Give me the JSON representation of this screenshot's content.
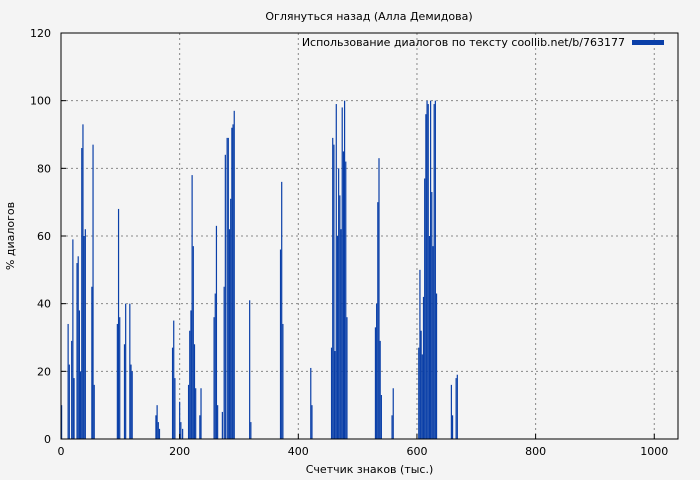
{
  "chart_data": {
    "type": "bar",
    "title": "Оглянуться назад (Алла Демидова)",
    "xlabel": "Счетчик знаков (тыс.)",
    "ylabel": "% диалогов",
    "legend": "Использование диалогов по тексту coollib.net/b/763177",
    "legend_position": "top-right",
    "xlim": [
      0,
      1040
    ],
    "ylim": [
      0,
      120
    ],
    "xticks": [
      0,
      200,
      400,
      600,
      800,
      1000
    ],
    "yticks": [
      0,
      20,
      40,
      60,
      80,
      100,
      120
    ],
    "grid": true,
    "bar_color": "#0a3fa8",
    "points": [
      [
        1,
        10
      ],
      [
        12,
        34
      ],
      [
        14,
        22
      ],
      [
        18,
        29
      ],
      [
        20,
        59
      ],
      [
        22,
        18
      ],
      [
        27,
        52
      ],
      [
        29,
        54
      ],
      [
        31,
        38
      ],
      [
        33,
        20
      ],
      [
        35,
        86
      ],
      [
        37,
        93
      ],
      [
        39,
        60
      ],
      [
        41,
        62
      ],
      [
        52,
        45
      ],
      [
        54,
        87
      ],
      [
        56,
        16
      ],
      [
        95,
        34
      ],
      [
        97,
        68
      ],
      [
        99,
        36
      ],
      [
        107,
        28
      ],
      [
        109,
        40
      ],
      [
        116,
        40
      ],
      [
        118,
        22
      ],
      [
        120,
        20
      ],
      [
        160,
        7
      ],
      [
        162,
        10
      ],
      [
        164,
        5
      ],
      [
        166,
        3
      ],
      [
        188,
        27
      ],
      [
        190,
        35
      ],
      [
        192,
        18
      ],
      [
        200,
        11
      ],
      [
        202,
        5
      ],
      [
        205,
        3
      ],
      [
        215,
        16
      ],
      [
        217,
        32
      ],
      [
        219,
        38
      ],
      [
        221,
        78
      ],
      [
        223,
        57
      ],
      [
        225,
        28
      ],
      [
        227,
        15
      ],
      [
        234,
        7
      ],
      [
        236,
        15
      ],
      [
        258,
        36
      ],
      [
        260,
        43
      ],
      [
        262,
        63
      ],
      [
        264,
        10
      ],
      [
        272,
        8
      ],
      [
        275,
        45
      ],
      [
        277,
        84
      ],
      [
        280,
        89
      ],
      [
        282,
        89
      ],
      [
        284,
        62
      ],
      [
        286,
        71
      ],
      [
        288,
        92
      ],
      [
        290,
        93
      ],
      [
        292,
        97
      ],
      [
        318,
        41
      ],
      [
        320,
        5
      ],
      [
        370,
        56
      ],
      [
        372,
        76
      ],
      [
        374,
        34
      ],
      [
        421,
        21
      ],
      [
        423,
        10
      ],
      [
        456,
        27
      ],
      [
        458,
        89
      ],
      [
        460,
        87
      ],
      [
        462,
        26
      ],
      [
        464,
        99
      ],
      [
        466,
        60
      ],
      [
        468,
        80
      ],
      [
        470,
        72
      ],
      [
        472,
        62
      ],
      [
        474,
        98
      ],
      [
        476,
        85
      ],
      [
        478,
        100
      ],
      [
        480,
        82
      ],
      [
        482,
        36
      ],
      [
        530,
        33
      ],
      [
        532,
        40
      ],
      [
        534,
        70
      ],
      [
        536,
        83
      ],
      [
        538,
        29
      ],
      [
        540,
        13
      ],
      [
        558,
        7
      ],
      [
        560,
        15
      ],
      [
        603,
        27
      ],
      [
        605,
        50
      ],
      [
        607,
        32
      ],
      [
        609,
        25
      ],
      [
        611,
        42
      ],
      [
        613,
        77
      ],
      [
        615,
        96
      ],
      [
        617,
        100
      ],
      [
        619,
        99
      ],
      [
        621,
        60
      ],
      [
        623,
        100
      ],
      [
        625,
        73
      ],
      [
        627,
        57
      ],
      [
        629,
        99
      ],
      [
        631,
        100
      ],
      [
        633,
        43
      ],
      [
        658,
        16
      ],
      [
        660,
        7
      ],
      [
        666,
        18
      ],
      [
        668,
        19
      ]
    ]
  }
}
